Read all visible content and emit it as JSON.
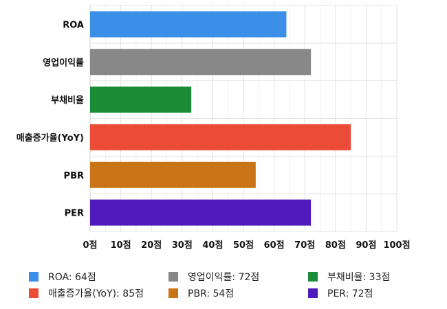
{
  "chart_data": {
    "type": "bar",
    "orientation": "horizontal",
    "categories": [
      "ROA",
      "영업이익률",
      "부채비율",
      "매출증가율(YoY)",
      "PBR",
      "PER"
    ],
    "values": [
      64,
      72,
      33,
      85,
      54,
      72
    ],
    "colors": [
      "#3b8fe6",
      "#888888",
      "#1a8c35",
      "#ec4c37",
      "#c97416",
      "#4f1bbd"
    ],
    "x_ticks": [
      "0점",
      "10점",
      "20점",
      "30점",
      "40점",
      "50점",
      "60점",
      "70점",
      "80점",
      "90점",
      "100점"
    ],
    "xlim": [
      0,
      100
    ],
    "grid": true,
    "title": "",
    "xlabel": "",
    "ylabel": ""
  },
  "legend": {
    "placement": "bottom",
    "items": [
      {
        "label": "ROA: 64점",
        "color": "#3b8fe6"
      },
      {
        "label": "영업이익률: 72점",
        "color": "#888888"
      },
      {
        "label": "부채비율: 33점",
        "color": "#1a8c35"
      },
      {
        "label": "매출증가율(YoY): 85점",
        "color": "#ec4c37"
      },
      {
        "label": "PBR: 54점",
        "color": "#c97416"
      },
      {
        "label": "PER: 72점",
        "color": "#4f1bbd"
      }
    ]
  }
}
